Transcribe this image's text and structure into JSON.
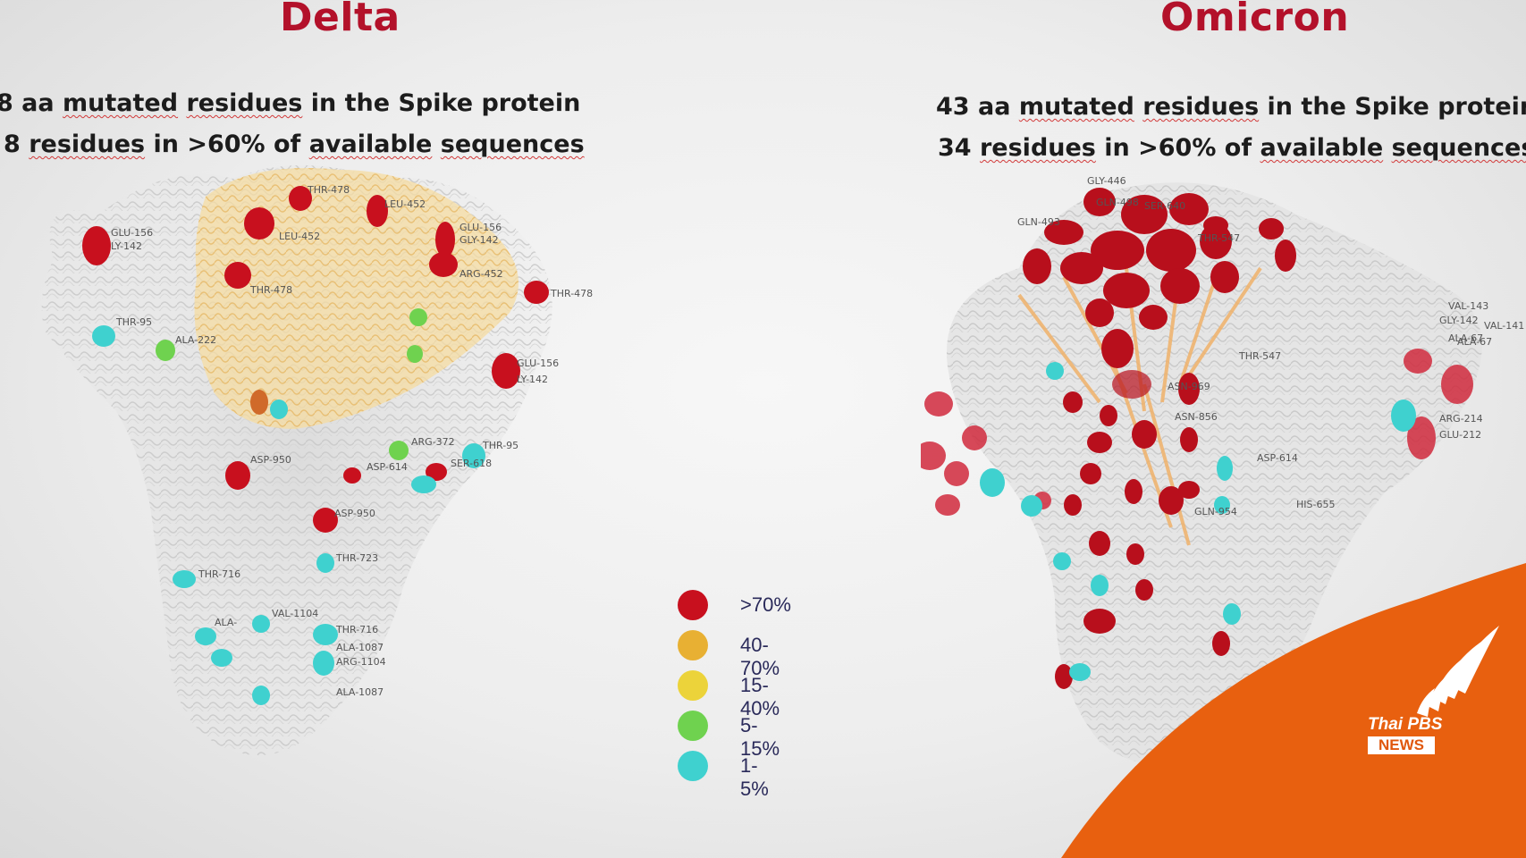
{
  "delta": {
    "title": "Delta",
    "stat_line1": "8 aa mutated residues in the Spike protein",
    "stat_line2": "8 residues in >60% of available sequences",
    "residue_labels": [
      "GLU-156",
      "LY-142",
      "THR-478",
      "LEU-452",
      "LEU-452",
      "GLU-156",
      "GLY-142",
      "THR-478",
      "ARG-452",
      "THR-478",
      "THR-95",
      "ALA-222",
      "GLU-156",
      "LY-142",
      "ASP-950",
      "ARG-372",
      "THR-95",
      "ASP-614",
      "SER-618",
      "ASP-950",
      "THR-716",
      "THR-723",
      "ALA-1087",
      "ALA-",
      "VAL-1104",
      "THR-716",
      "ARG-1104",
      "ALA-1087"
    ]
  },
  "omicron": {
    "title": "Omicron",
    "stat_line1": "43 aa mutated residues in the Spike protein",
    "stat_line2": "34 residues in >60% of available sequences",
    "residue_labels": [
      "GLY-446",
      "GLN-498",
      "SER-640",
      "GLN-493",
      "THR-547",
      "VAL-143",
      "ALA-67",
      "GLY-142",
      "VAL-141",
      "ALA-67",
      "THR-547",
      "ASN-969",
      "ASN-856",
      "ARG-214",
      "GLU-212",
      "ASP-614",
      "HIS-655",
      "GLN-954"
    ]
  },
  "legend": {
    "items": [
      {
        "label": ">70%",
        "color": "#c8101e"
      },
      {
        "label": "40-70%",
        "color": "#e8b033"
      },
      {
        "label": "15-40%",
        "color": "#ecd33a"
      },
      {
        "label": "5-15%",
        "color": "#6fd24f"
      },
      {
        "label": "1-5%",
        "color": "#3fd1cf"
      }
    ]
  },
  "logo": {
    "name": "Thai PBS",
    "news_label": "NEWS",
    "color": "#e8600f"
  }
}
